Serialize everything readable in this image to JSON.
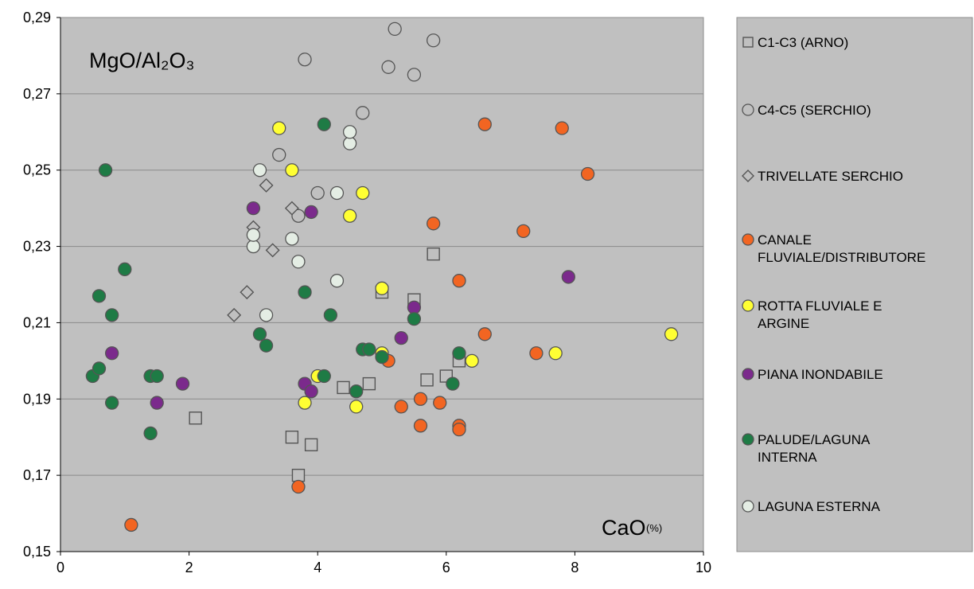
{
  "chart_data": {
    "type": "scatter",
    "ylabel": "MgO/Al₂O₃",
    "xlabel": "CaO",
    "xlabel_unit": "(%)",
    "xlim": [
      0,
      10
    ],
    "ylim": [
      0.15,
      0.29
    ],
    "x_ticks": [
      0,
      2,
      4,
      6,
      8,
      10
    ],
    "y_ticks": [
      0.15,
      0.17,
      0.19,
      0.21,
      0.23,
      0.25,
      0.27,
      0.29
    ],
    "x_tick_labels": [
      "0",
      "2",
      "4",
      "6",
      "8",
      "10"
    ],
    "y_tick_labels": [
      "0,15",
      "0,17",
      "0,19",
      "0,21",
      "0,23",
      "0,25",
      "0,27",
      "0,29"
    ],
    "grid": "horizontal",
    "legend_position": "right",
    "plot_background": "#c0c0c0",
    "series": [
      {
        "name": "C1-C3 (ARNO)",
        "marker": "square",
        "color": "#c0c0c0",
        "legend_lines": [
          "C1-C3 (ARNO)"
        ],
        "points": [
          [
            2.1,
            0.185
          ],
          [
            3.6,
            0.18
          ],
          [
            3.9,
            0.178
          ],
          [
            3.7,
            0.17
          ],
          [
            4.4,
            0.193
          ],
          [
            4.8,
            0.194
          ],
          [
            5.0,
            0.218
          ],
          [
            5.5,
            0.216
          ],
          [
            5.8,
            0.228
          ],
          [
            5.7,
            0.195
          ],
          [
            6.0,
            0.196
          ],
          [
            6.2,
            0.2
          ]
        ]
      },
      {
        "name": "C4-C5 (SERCHIO)",
        "marker": "circle",
        "color": "#c0c0c0",
        "legend_lines": [
          "C4-C5 (SERCHIO)"
        ],
        "points": [
          [
            3.8,
            0.279
          ],
          [
            5.2,
            0.287
          ],
          [
            5.1,
            0.277
          ],
          [
            5.5,
            0.275
          ],
          [
            5.8,
            0.284
          ],
          [
            4.7,
            0.265
          ],
          [
            3.4,
            0.254
          ],
          [
            4.0,
            0.244
          ],
          [
            3.7,
            0.238
          ]
        ]
      },
      {
        "name": "TRIVELLATE SERCHIO",
        "marker": "diamond",
        "color": "#c0c0c0",
        "legend_lines": [
          "TRIVELLATE SERCHIO"
        ],
        "points": [
          [
            2.7,
            0.212
          ],
          [
            2.9,
            0.218
          ],
          [
            3.0,
            0.235
          ],
          [
            3.3,
            0.229
          ],
          [
            3.2,
            0.246
          ],
          [
            3.6,
            0.24
          ]
        ]
      },
      {
        "name": "CANALE FLUVIALE/DISTRIBUTORE",
        "marker": "circle",
        "color": "#f26522",
        "legend_lines": [
          "CANALE",
          "FLUVIALE/DISTRIBUTORE"
        ],
        "points": [
          [
            1.1,
            0.157
          ],
          [
            3.7,
            0.167
          ],
          [
            5.1,
            0.2
          ],
          [
            5.3,
            0.188
          ],
          [
            5.6,
            0.19
          ],
          [
            5.6,
            0.183
          ],
          [
            5.8,
            0.236
          ],
          [
            5.9,
            0.189
          ],
          [
            6.2,
            0.221
          ],
          [
            6.2,
            0.183
          ],
          [
            6.2,
            0.182
          ],
          [
            6.6,
            0.262
          ],
          [
            6.6,
            0.207
          ],
          [
            7.2,
            0.234
          ],
          [
            7.4,
            0.202
          ],
          [
            7.8,
            0.261
          ],
          [
            8.2,
            0.249
          ]
        ]
      },
      {
        "name": "ROTTA FLUVIALE E ARGINE",
        "marker": "circle",
        "color": "#ffff33",
        "legend_lines": [
          "ROTTA FLUVIALE E",
          "ARGINE"
        ],
        "points": [
          [
            3.4,
            0.261
          ],
          [
            3.6,
            0.25
          ],
          [
            3.8,
            0.189
          ],
          [
            4.0,
            0.196
          ],
          [
            4.5,
            0.238
          ],
          [
            4.6,
            0.188
          ],
          [
            4.7,
            0.244
          ],
          [
            5.0,
            0.219
          ],
          [
            5.0,
            0.202
          ],
          [
            6.4,
            0.2
          ],
          [
            7.7,
            0.202
          ],
          [
            9.5,
            0.207
          ]
        ]
      },
      {
        "name": "PIANA INONDABILE",
        "marker": "circle",
        "color": "#7b2a8c",
        "legend_lines": [
          "PIANA INONDABILE"
        ],
        "points": [
          [
            0.8,
            0.202
          ],
          [
            1.5,
            0.189
          ],
          [
            1.9,
            0.194
          ],
          [
            3.0,
            0.24
          ],
          [
            3.8,
            0.194
          ],
          [
            3.9,
            0.192
          ],
          [
            3.9,
            0.239
          ],
          [
            5.3,
            0.206
          ],
          [
            5.5,
            0.214
          ],
          [
            7.9,
            0.222
          ]
        ]
      },
      {
        "name": "PALUDE/LAGUNA INTERNA",
        "marker": "circle",
        "color": "#1e7b45",
        "legend_lines": [
          "PALUDE/LAGUNA",
          "INTERNA"
        ],
        "points": [
          [
            0.5,
            0.196
          ],
          [
            0.6,
            0.198
          ],
          [
            0.6,
            0.217
          ],
          [
            0.7,
            0.25
          ],
          [
            0.8,
            0.212
          ],
          [
            0.8,
            0.189
          ],
          [
            1.0,
            0.224
          ],
          [
            1.4,
            0.196
          ],
          [
            1.5,
            0.196
          ],
          [
            1.4,
            0.181
          ],
          [
            3.1,
            0.207
          ],
          [
            3.2,
            0.204
          ],
          [
            3.8,
            0.218
          ],
          [
            4.1,
            0.196
          ],
          [
            4.1,
            0.262
          ],
          [
            4.2,
            0.212
          ],
          [
            4.6,
            0.192
          ],
          [
            4.7,
            0.203
          ],
          [
            4.8,
            0.203
          ],
          [
            5.0,
            0.201
          ],
          [
            5.5,
            0.211
          ],
          [
            6.1,
            0.194
          ],
          [
            6.2,
            0.202
          ]
        ]
      },
      {
        "name": "LAGUNA ESTERNA",
        "marker": "circle",
        "color": "#e4ede4",
        "legend_lines": [
          "LAGUNA ESTERNA"
        ],
        "points": [
          [
            3.0,
            0.23
          ],
          [
            3.0,
            0.233
          ],
          [
            3.1,
            0.25
          ],
          [
            3.2,
            0.212
          ],
          [
            3.6,
            0.232
          ],
          [
            3.7,
            0.226
          ],
          [
            4.3,
            0.244
          ],
          [
            4.3,
            0.221
          ],
          [
            4.5,
            0.257
          ],
          [
            4.5,
            0.26
          ]
        ]
      }
    ]
  }
}
